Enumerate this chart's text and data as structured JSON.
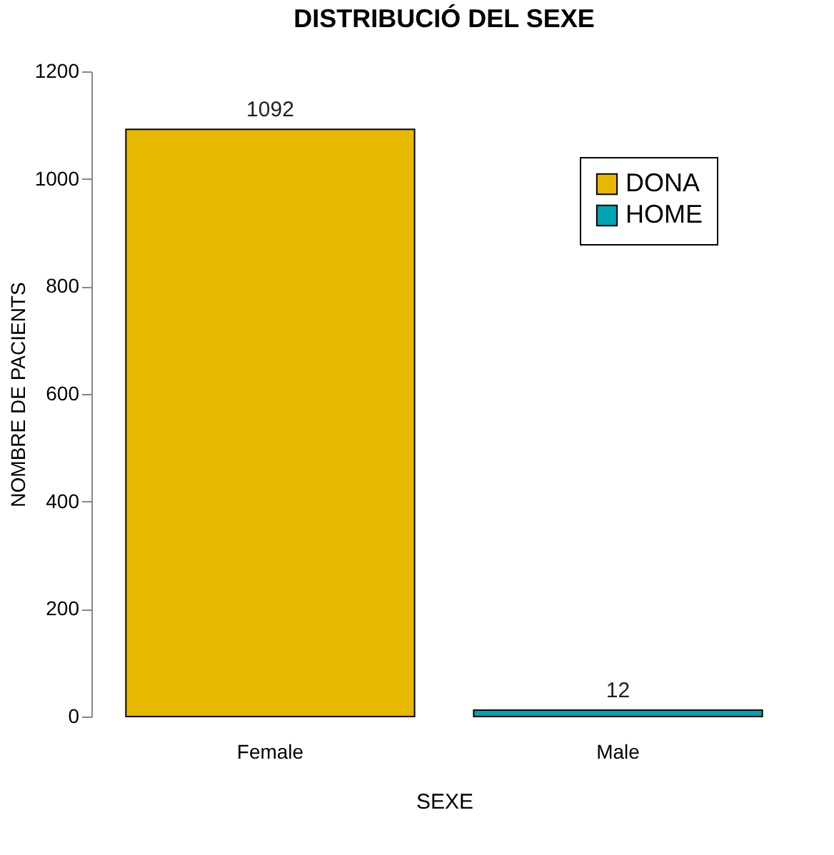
{
  "chart_data": {
    "type": "bar",
    "title": "DISTRIBUCIÓ DEL SEXE",
    "xlabel": "SEXE",
    "ylabel": "NOMBRE DE PACIENTS",
    "categories": [
      "Female",
      "Male"
    ],
    "series": [
      {
        "name": "DONA",
        "color": "#e6b800",
        "values": [
          1092,
          null
        ]
      },
      {
        "name": "HOME",
        "color": "#00a3b0",
        "values": [
          null,
          12
        ]
      }
    ],
    "ylim": [
      0,
      1200
    ],
    "yticks": [
      0,
      200,
      400,
      600,
      800,
      1000,
      1200
    ],
    "grid": false,
    "legend": "top right",
    "data_labels": true
  }
}
